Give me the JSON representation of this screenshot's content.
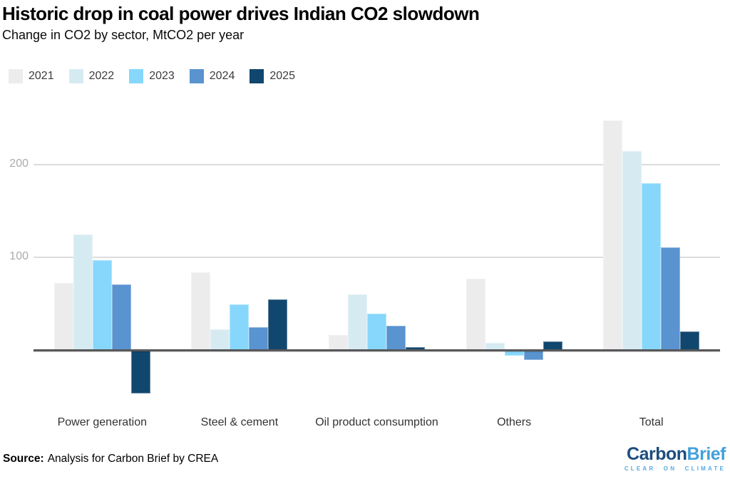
{
  "header": {
    "title": "Historic drop in coal power drives Indian CO2 slowdown",
    "subtitle": "Change in CO2 by sector, MtCO2 per year"
  },
  "chart_data": {
    "type": "bar",
    "title": "Historic drop in coal power drives Indian CO2 slowdown",
    "subtitle": "Change in CO2 by sector, MtCO2 per year",
    "xlabel": "",
    "ylabel": "MtCO2 per year",
    "categories": [
      "Power generation",
      "Steel & cement",
      "Oil product consumption",
      "Others",
      "Total"
    ],
    "series": [
      {
        "name": "2021",
        "color": "#ececec",
        "values": [
          72,
          84,
          16,
          77,
          248
        ]
      },
      {
        "name": "2022",
        "color": "#d6eaf2",
        "values": [
          125,
          22,
          60,
          8,
          215
        ]
      },
      {
        "name": "2023",
        "color": "#87d7fc",
        "values": [
          97,
          49,
          39,
          -6,
          180
        ]
      },
      {
        "name": "2024",
        "color": "#5993d0",
        "values": [
          71,
          25,
          26,
          -11,
          111
        ]
      },
      {
        "name": "2025",
        "color": "#11466e",
        "values": [
          -47,
          55,
          3,
          9,
          20
        ]
      }
    ],
    "yticks": [
      100,
      200
    ],
    "ylim": [
      -75,
      262
    ],
    "grid": "horizontal",
    "legend_position": "top-left",
    "zero_baseline": true,
    "colors": {
      "gridline": "#dcdcdc",
      "zero_line": "#58585a",
      "tick_label": "#ababab",
      "category_label": "#333333"
    }
  },
  "footer": {
    "source_label": "Source:",
    "source_text": "Analysis for Carbon Brief by CREA"
  },
  "logo": {
    "part1": "Carbon",
    "part2": "Brief",
    "tagline": "CLEAR ON CLIMATE",
    "color1": "#1d4e7e",
    "color2": "#42a0db",
    "tagline_color": "#56aadd"
  }
}
